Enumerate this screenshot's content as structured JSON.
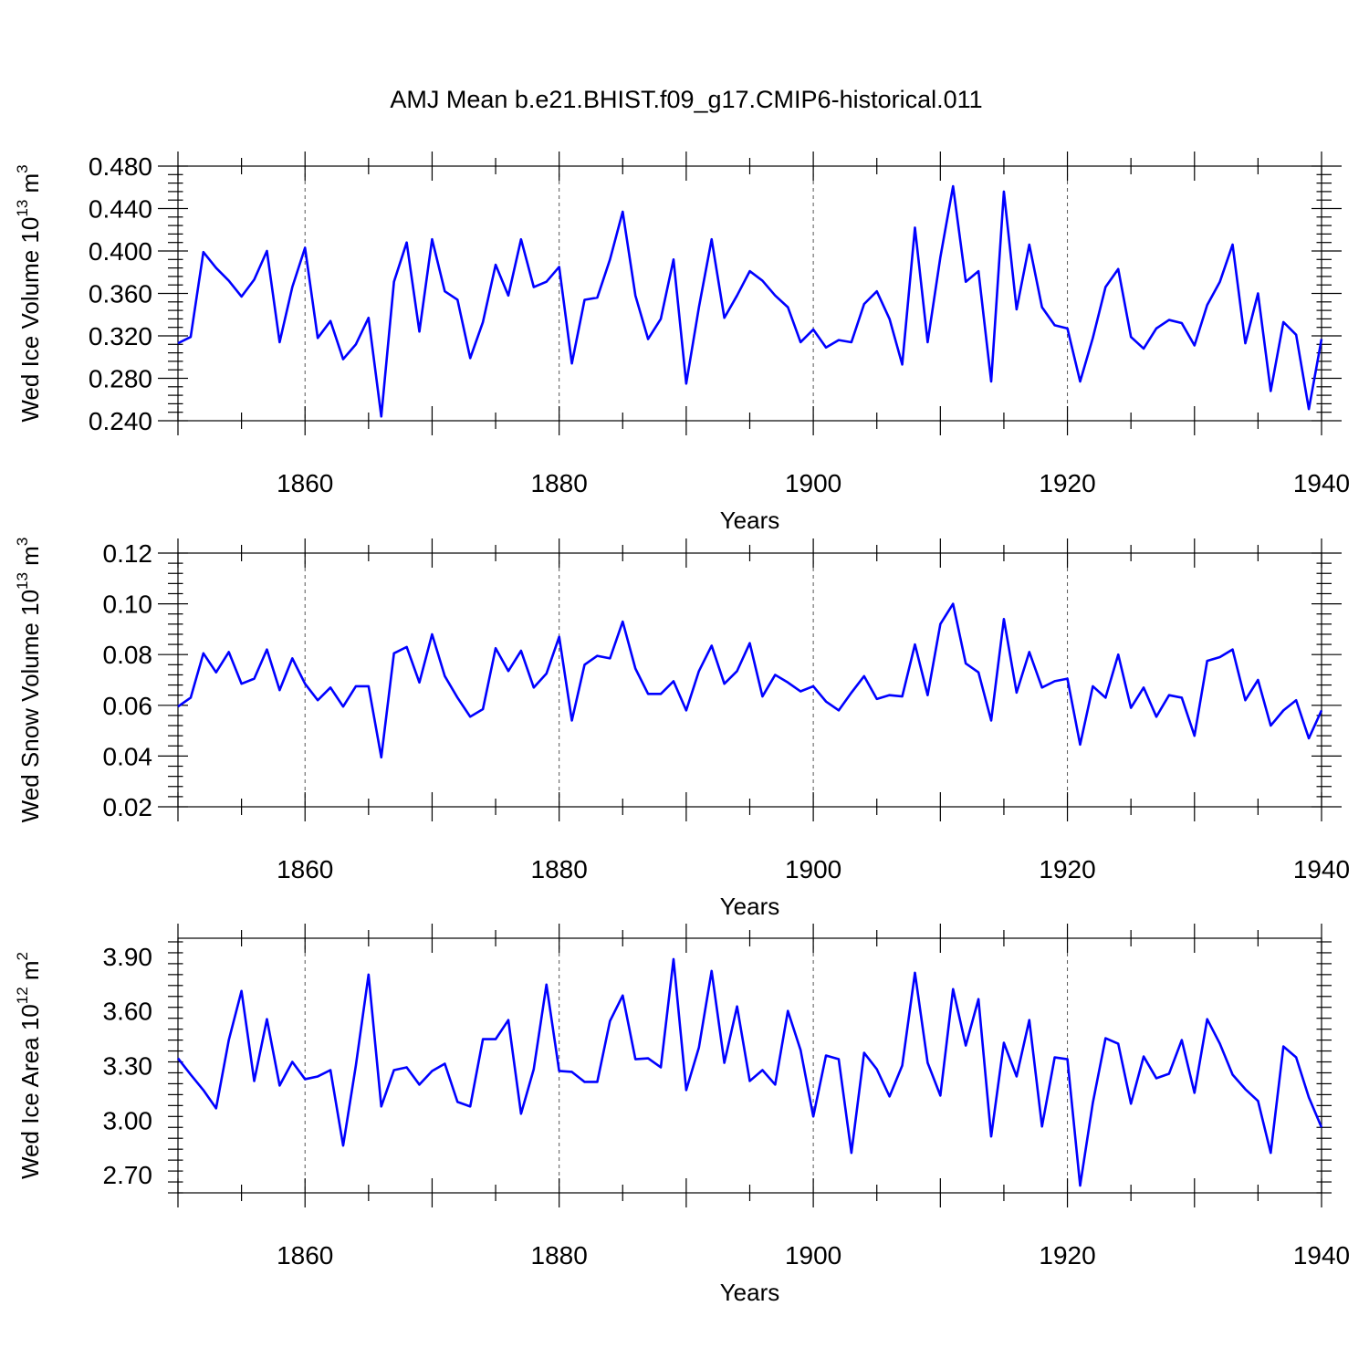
{
  "chart_data": {
    "title": "AMJ Mean b.e21.BHIST.f09_g17.CMIP6-historical.011",
    "x_start": 1850,
    "x_end": 1940,
    "xticks": [
      "1860",
      "1880",
      "1900",
      "1920",
      "1940"
    ],
    "xtick_values": [
      1860,
      1880,
      1900,
      1920,
      1940
    ],
    "line_color": "#0000ff",
    "panels": [
      {
        "type": "line",
        "ylabel": "Wed Ice Volume 10",
        "ylabel_exp": "13",
        "ylabel_unit": " m",
        "ylabel_unit_exp": "3",
        "xlabel": "Years",
        "ylim": [
          0.24,
          0.48
        ],
        "yticks": [
          "0.240",
          "0.280",
          "0.320",
          "0.360",
          "0.400",
          "0.440",
          "0.480"
        ],
        "ytick_values": [
          0.24,
          0.28,
          0.32,
          0.36,
          0.4,
          0.44,
          0.48
        ],
        "values": [
          0.313,
          0.319,
          0.399,
          0.384,
          0.372,
          0.357,
          0.373,
          0.4,
          0.314,
          0.366,
          0.403,
          0.318,
          0.334,
          0.298,
          0.312,
          0.337,
          0.244,
          0.371,
          0.408,
          0.324,
          0.411,
          0.362,
          0.354,
          0.299,
          0.333,
          0.387,
          0.358,
          0.411,
          0.366,
          0.371,
          0.385,
          0.294,
          0.354,
          0.356,
          0.392,
          0.437,
          0.358,
          0.317,
          0.336,
          0.392,
          0.275,
          0.347,
          0.411,
          0.337,
          0.358,
          0.381,
          0.372,
          0.358,
          0.347,
          0.314,
          0.326,
          0.309,
          0.316,
          0.314,
          0.35,
          0.362,
          0.336,
          0.293,
          0.422,
          0.314,
          0.394,
          0.461,
          0.371,
          0.381,
          0.277,
          0.456,
          0.345,
          0.406,
          0.347,
          0.33,
          0.327,
          0.277,
          0.318,
          0.366,
          0.383,
          0.319,
          0.308,
          0.327,
          0.335,
          0.332,
          0.311,
          0.349,
          0.371,
          0.406,
          0.313,
          0.36,
          0.268,
          0.333,
          0.321,
          0.251,
          0.317
        ]
      },
      {
        "type": "line",
        "ylabel": "Wed Snow Volume 10",
        "ylabel_exp": "13",
        "ylabel_unit": " m",
        "ylabel_unit_exp": "3",
        "xlabel": "Years",
        "ylim": [
          0.02,
          0.12
        ],
        "yticks": [
          "0.02",
          "0.04",
          "0.06",
          "0.08",
          "0.10",
          "0.12"
        ],
        "ytick_values": [
          0.02,
          0.04,
          0.06,
          0.08,
          0.1,
          0.12
        ],
        "values": [
          0.0595,
          0.063,
          0.0805,
          0.073,
          0.081,
          0.0685,
          0.0705,
          0.082,
          0.066,
          0.0785,
          0.0685,
          0.062,
          0.067,
          0.0595,
          0.0675,
          0.0675,
          0.0395,
          0.0805,
          0.083,
          0.069,
          0.088,
          0.0715,
          0.063,
          0.0555,
          0.0585,
          0.0825,
          0.0735,
          0.0815,
          0.067,
          0.0725,
          0.087,
          0.054,
          0.076,
          0.0795,
          0.0785,
          0.093,
          0.0745,
          0.0645,
          0.0645,
          0.0695,
          0.058,
          0.0735,
          0.0835,
          0.0685,
          0.0735,
          0.0845,
          0.0635,
          0.072,
          0.069,
          0.0655,
          0.0675,
          0.0615,
          0.058,
          0.065,
          0.0715,
          0.0625,
          0.064,
          0.0635,
          0.084,
          0.064,
          0.092,
          0.1,
          0.0765,
          0.073,
          0.054,
          0.094,
          0.065,
          0.081,
          0.067,
          0.0695,
          0.0705,
          0.0445,
          0.0675,
          0.063,
          0.08,
          0.059,
          0.067,
          0.0555,
          0.064,
          0.063,
          0.048,
          0.0775,
          0.079,
          0.082,
          0.062,
          0.07,
          0.052,
          0.058,
          0.062,
          0.047,
          0.058
        ]
      },
      {
        "type": "line",
        "ylabel": "Wed Ice Area 10",
        "ylabel_exp": "12",
        "ylabel_unit": " m",
        "ylabel_unit_exp": "2",
        "xlabel": "Years",
        "ylim": [
          2.6,
          4.0
        ],
        "yticks": [
          "2.70",
          "3.00",
          "3.30",
          "3.60",
          "3.90"
        ],
        "ytick_values": [
          2.7,
          3.0,
          3.3,
          3.6,
          3.9
        ],
        "values": [
          3.34,
          3.25,
          3.165,
          3.065,
          3.44,
          3.71,
          3.215,
          3.555,
          3.19,
          3.32,
          3.225,
          3.24,
          3.275,
          2.86,
          3.3,
          3.8,
          3.075,
          3.275,
          3.29,
          3.195,
          3.27,
          3.31,
          3.1,
          3.075,
          3.445,
          3.445,
          3.55,
          3.035,
          3.28,
          3.745,
          3.27,
          3.265,
          3.21,
          3.21,
          3.545,
          3.685,
          3.335,
          3.34,
          3.29,
          3.885,
          3.165,
          3.4,
          3.82,
          3.315,
          3.625,
          3.215,
          3.275,
          3.195,
          3.6,
          3.385,
          3.02,
          3.355,
          3.335,
          2.82,
          3.37,
          3.28,
          3.13,
          3.3,
          3.81,
          3.315,
          3.135,
          3.72,
          3.41,
          3.665,
          2.91,
          3.425,
          3.24,
          3.55,
          2.965,
          3.345,
          3.335,
          2.64,
          3.095,
          3.45,
          3.42,
          3.09,
          3.35,
          3.23,
          3.255,
          3.44,
          3.15,
          3.555,
          3.42,
          3.25,
          3.17,
          3.105,
          2.82,
          3.405,
          3.345,
          3.125,
          2.96
        ]
      }
    ]
  }
}
